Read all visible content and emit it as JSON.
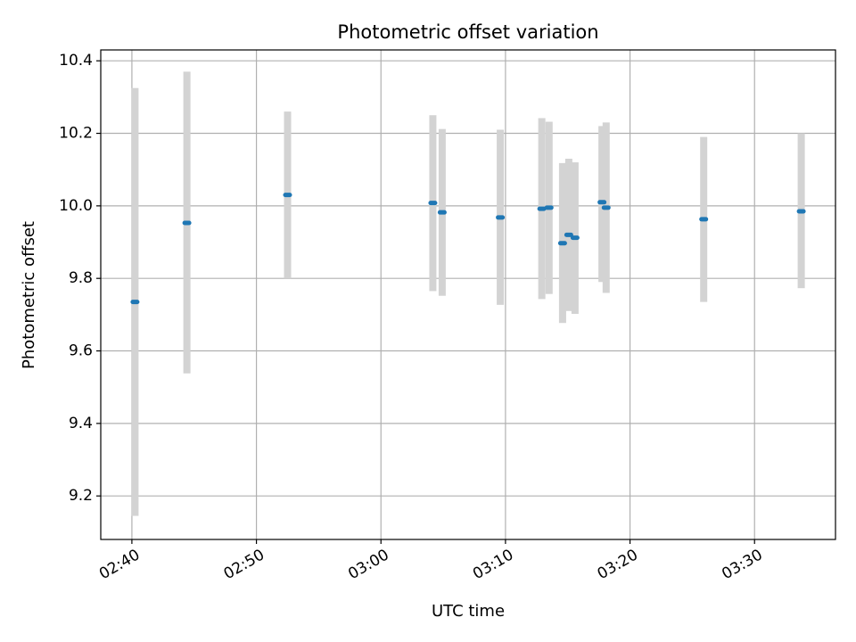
{
  "chart_data": {
    "type": "scatter",
    "title": "Photometric offset variation",
    "xlabel": "UTC time",
    "ylabel": "Photometric offset",
    "x_axis": {
      "unit": "time (HH:MM UTC)",
      "range": [
        "02:37:30",
        "03:36:30"
      ],
      "ticks": [
        "02:40",
        "02:50",
        "03:00",
        "03:10",
        "03:20",
        "03:30"
      ]
    },
    "y_axis": {
      "range": [
        9.08,
        10.43
      ],
      "ticks": [
        "9.2",
        "9.4",
        "9.6",
        "9.8",
        "10.0",
        "10.2",
        "10.4"
      ]
    },
    "grid": true,
    "colors": {
      "marker": "#1f77b4",
      "errorbar": "#d3d3d3",
      "grid": "#b0b0b0"
    },
    "points": [
      {
        "time": "02:40:15",
        "y": 9.735,
        "ylow": 9.145,
        "yhigh": 10.325
      },
      {
        "time": "02:44:25",
        "y": 9.953,
        "ylow": 9.538,
        "yhigh": 10.37
      },
      {
        "time": "02:52:30",
        "y": 10.03,
        "ylow": 9.8,
        "yhigh": 10.26
      },
      {
        "time": "03:04:10",
        "y": 10.008,
        "ylow": 9.765,
        "yhigh": 10.25
      },
      {
        "time": "03:04:55",
        "y": 9.982,
        "ylow": 9.752,
        "yhigh": 10.212
      },
      {
        "time": "03:09:35",
        "y": 9.968,
        "ylow": 9.727,
        "yhigh": 10.21
      },
      {
        "time": "03:12:55",
        "y": 9.992,
        "ylow": 9.743,
        "yhigh": 10.242
      },
      {
        "time": "03:13:30",
        "y": 9.995,
        "ylow": 9.757,
        "yhigh": 10.232
      },
      {
        "time": "03:14:35",
        "y": 9.897,
        "ylow": 9.677,
        "yhigh": 10.118
      },
      {
        "time": "03:15:05",
        "y": 9.92,
        "ylow": 9.71,
        "yhigh": 10.13
      },
      {
        "time": "03:15:35",
        "y": 9.912,
        "ylow": 9.702,
        "yhigh": 10.12
      },
      {
        "time": "03:17:45",
        "y": 10.01,
        "ylow": 9.79,
        "yhigh": 10.22
      },
      {
        "time": "03:18:05",
        "y": 9.995,
        "ylow": 9.76,
        "yhigh": 10.23
      },
      {
        "time": "03:25:55",
        "y": 9.963,
        "ylow": 9.735,
        "yhigh": 10.19
      },
      {
        "time": "03:33:45",
        "y": 9.985,
        "ylow": 9.773,
        "yhigh": 10.2
      }
    ]
  }
}
